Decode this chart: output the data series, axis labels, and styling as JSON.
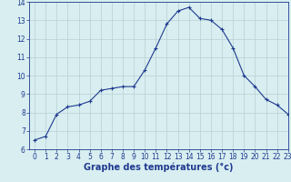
{
  "hours": [
    0,
    1,
    2,
    3,
    4,
    5,
    6,
    7,
    8,
    9,
    10,
    11,
    12,
    13,
    14,
    15,
    16,
    17,
    18,
    19,
    20,
    21,
    22,
    23
  ],
  "temps": [
    6.5,
    6.7,
    7.9,
    8.3,
    8.4,
    8.6,
    9.2,
    9.3,
    9.4,
    9.4,
    10.3,
    11.5,
    12.8,
    13.5,
    13.7,
    13.1,
    13.0,
    12.5,
    11.5,
    10.0,
    9.4,
    8.7,
    8.4,
    7.9
  ],
  "line_color": "#1f3a8f",
  "marker": "+",
  "marker_size": 3,
  "bg_color": "#d8eef0",
  "grid_color": "#b8d0d4",
  "xlabel": "Graphe des températures (°c)",
  "ylim": [
    6,
    14
  ],
  "xlim": [
    -0.5,
    23
  ],
  "yticks": [
    6,
    7,
    8,
    9,
    10,
    11,
    12,
    13,
    14
  ],
  "xticks": [
    0,
    1,
    2,
    3,
    4,
    5,
    6,
    7,
    8,
    9,
    10,
    11,
    12,
    13,
    14,
    15,
    16,
    17,
    18,
    19,
    20,
    21,
    22,
    23
  ],
  "tick_label_fontsize": 5.5,
  "xlabel_fontsize": 7,
  "xlabel_color": "#1f3a8f",
  "axis_color": "#1f3a8f",
  "tick_color": "#1f3a8f"
}
